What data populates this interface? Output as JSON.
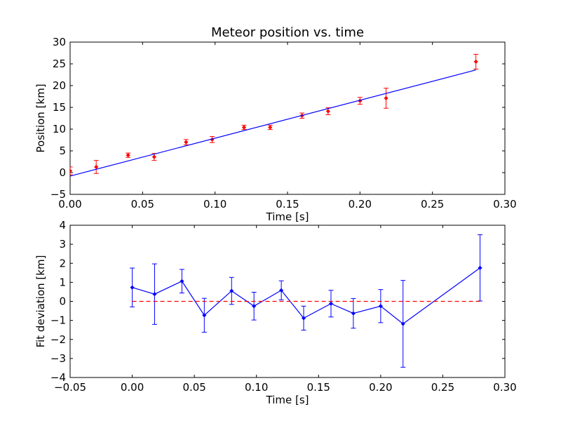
{
  "colors": {
    "background": "#ffffff",
    "axes": "#000000",
    "fit_line": "#0000ff",
    "measurement_points": "#ff0000",
    "zero_line": "#ff0000",
    "deviation_series": "#0000ff"
  },
  "chart_data": [
    {
      "type": "scatter",
      "title": "Meteor position vs. time",
      "xlabel": "Time [s]",
      "ylabel": "Position [km]",
      "xlim": [
        0.0,
        0.3
      ],
      "ylim": [
        -5,
        30
      ],
      "xticks": [
        "0.00",
        "0.05",
        "0.10",
        "0.15",
        "0.20",
        "0.25",
        "0.30"
      ],
      "yticks": [
        "−5",
        "0",
        "5",
        "10",
        "15",
        "20",
        "25",
        "30"
      ],
      "grid": false,
      "series": [
        {
          "kind": "errorbar-points",
          "color": "#ff0000",
          "x": [
            0.0,
            0.018,
            0.04,
            0.058,
            0.08,
            0.098,
            0.12,
            0.138,
            0.16,
            0.178,
            0.2,
            0.218,
            0.28
          ],
          "y": [
            0.4,
            1.3,
            4.0,
            3.6,
            7.0,
            7.6,
            10.4,
            10.4,
            13.1,
            14.1,
            16.5,
            17.1,
            25.5
          ],
          "yerr": [
            0.9,
            1.5,
            0.5,
            0.8,
            0.6,
            0.7,
            0.5,
            0.5,
            0.6,
            0.8,
            0.8,
            2.3,
            1.7
          ]
        },
        {
          "kind": "fit-line",
          "color": "#0000ff",
          "x": [
            0.0,
            0.28
          ],
          "y": [
            -0.8,
            23.6
          ]
        }
      ]
    },
    {
      "type": "line",
      "title": "",
      "xlabel": "Time [s]",
      "ylabel": "Fit deviation [km]",
      "xlim": [
        -0.05,
        0.3
      ],
      "ylim": [
        -4,
        4
      ],
      "xticks": [
        "−0.05",
        "0.00",
        "0.05",
        "0.10",
        "0.15",
        "0.20",
        "0.25",
        "0.30"
      ],
      "yticks": [
        "−4",
        "−3",
        "−2",
        "−1",
        "0",
        "1",
        "2",
        "3",
        "4"
      ],
      "grid": false,
      "series": [
        {
          "kind": "errorbar-line",
          "color": "#0000ff",
          "x": [
            0.0,
            0.018,
            0.04,
            0.058,
            0.08,
            0.098,
            0.12,
            0.138,
            0.16,
            0.178,
            0.2,
            0.218,
            0.28
          ],
          "y": [
            0.73,
            0.38,
            1.06,
            -0.73,
            0.55,
            -0.25,
            0.58,
            -0.88,
            -0.12,
            -0.63,
            -0.25,
            -1.18,
            1.76
          ],
          "yerr": [
            1.02,
            1.59,
            0.62,
            0.89,
            0.71,
            0.73,
            0.5,
            0.63,
            0.7,
            0.78,
            0.87,
            2.28,
            1.74
          ]
        },
        {
          "kind": "reference-line",
          "color": "#ff0000",
          "style": "dashed",
          "x": [
            0.0,
            0.28
          ],
          "y": [
            0,
            0
          ]
        }
      ]
    }
  ]
}
